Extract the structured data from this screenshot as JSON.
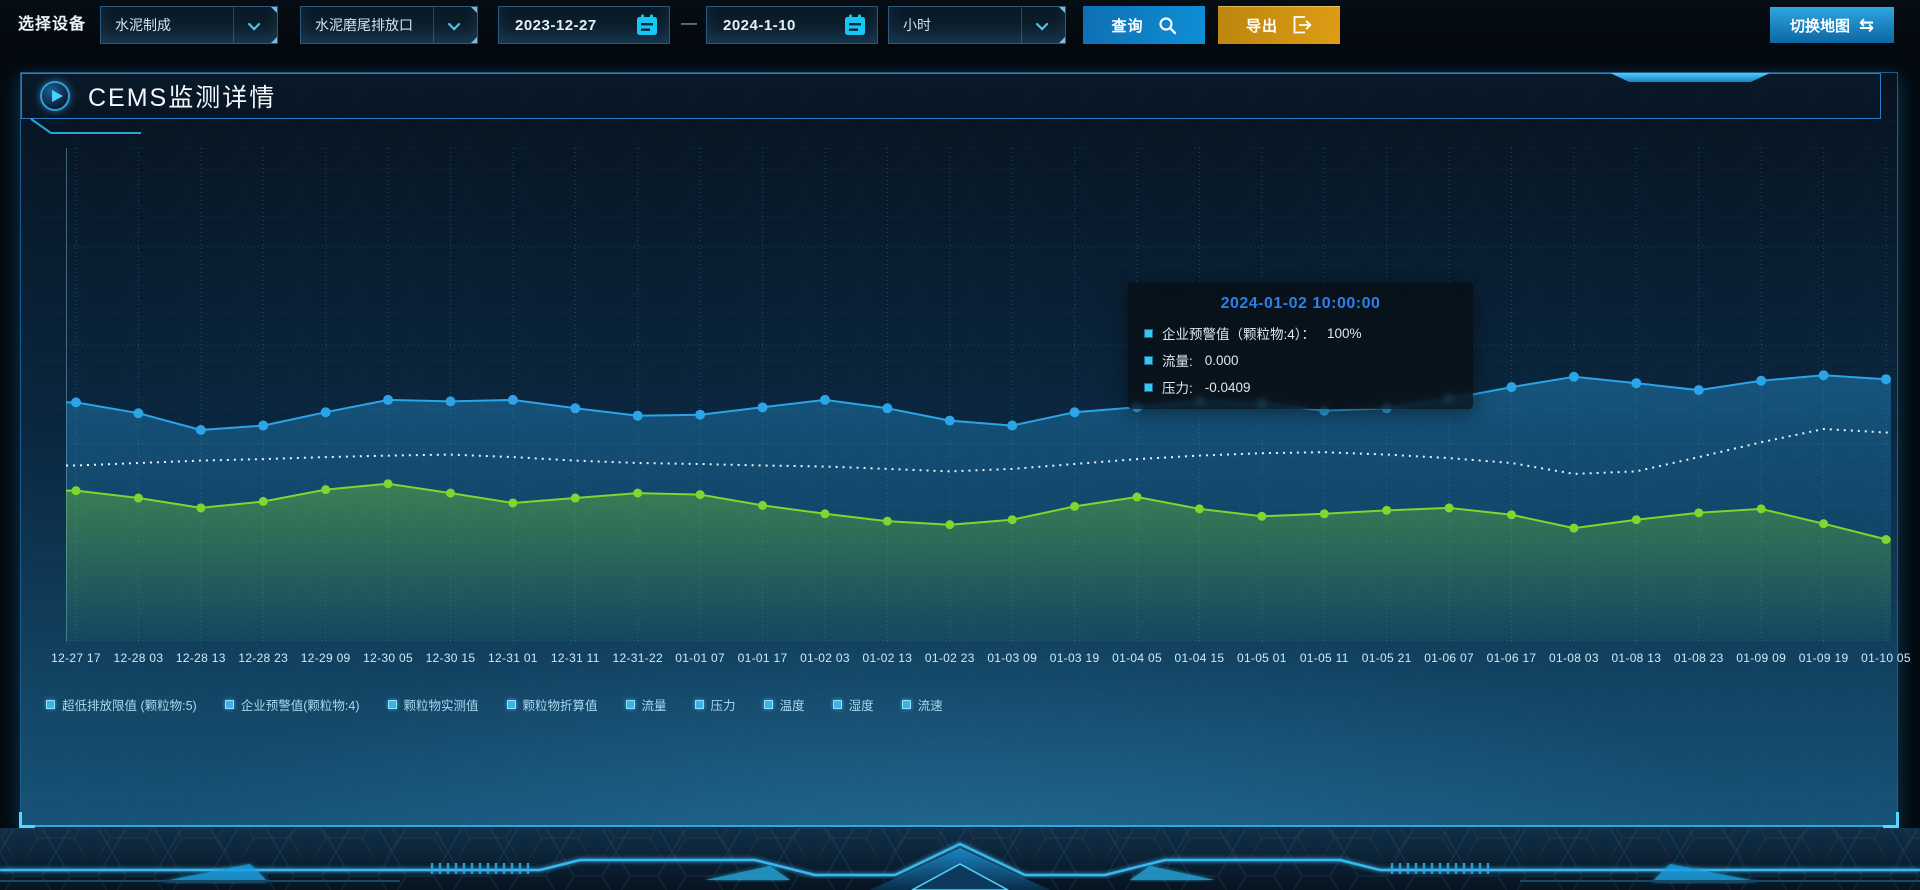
{
  "toolbar": {
    "device_label": "选择设备",
    "selects": [
      {
        "value": "水泥制成"
      },
      {
        "value": "水泥磨尾排放口"
      },
      {
        "value": "小时"
      }
    ],
    "date_start": "2023-12-27",
    "date_separator": "—",
    "date_end": "2024-1-10",
    "query_label": "查询",
    "export_label": "导出",
    "switch_map_label": "切换地图",
    "switch_map_icon": "⇆"
  },
  "panel": {
    "title": "CEMS监测详情"
  },
  "tooltip": {
    "title": "2024-01-02 10:00:00",
    "rows": [
      {
        "label": "企业预警值（颗粒物:4）：",
        "value": "100%"
      },
      {
        "label": "流量:",
        "value": "0.000"
      },
      {
        "label": "压力:",
        "value": "-0.0409"
      }
    ]
  },
  "legend": {
    "items": [
      "超低排放限值 (颗粒物:5)",
      "企业预警值(颗粒物:4)",
      "颗粒物实测值",
      "颗粒物折算值",
      "流量",
      "压力",
      "温度",
      "湿度",
      "流速"
    ]
  },
  "chart_data": {
    "type": "line",
    "title": "",
    "xlabel": "",
    "ylabel": "",
    "grid": "dotted",
    "legend_position": "bottom",
    "y_axis_labels_visible": false,
    "values_unit": "percent-of-plot-height (y axis unlabeled in screenshot)",
    "ylim": [
      0,
      100
    ],
    "x_labels": [
      "12-27 17",
      "12-28 03",
      "12-28 13",
      "12-28 23",
      "12-29 09",
      "12-30 05",
      "12-30 15",
      "12-31 01",
      "12-31 11",
      "12-31-22",
      "01-01 07",
      "01-01 17",
      "01-02 03",
      "01-02 13",
      "01-02 23",
      "01-03 09",
      "01-03 19",
      "01-04 05",
      "01-04 15",
      "01-05 01",
      "01-05 11",
      "01-05 21",
      "01-06 07",
      "01-06 17",
      "01-08 03",
      "01-08 13",
      "01-08 23",
      "01-09 09",
      "01-09 19",
      "01-10 05"
    ],
    "series": [
      {
        "name": "blue-line-with-markers",
        "color": "#2ba4e8",
        "marker": "circle",
        "marker_r": 5,
        "style": "solid",
        "area": true,
        "values": [
          48.4,
          46.2,
          42.8,
          43.7,
          46.4,
          48.9,
          48.6,
          48.9,
          47.2,
          45.7,
          45.9,
          47.4,
          48.9,
          47.2,
          44.7,
          43.7,
          46.4,
          47.4,
          48.6,
          48.2,
          46.7,
          47.2,
          49.1,
          51.5,
          53.6,
          52.3,
          50.9,
          52.8,
          53.9,
          53.1
        ]
      },
      {
        "name": "white-dashed-line",
        "color": "#e8f3f7",
        "marker": "none",
        "marker_r": 0,
        "style": "dashed",
        "area": false,
        "values": [
          35.6,
          36.1,
          36.6,
          36.9,
          37.3,
          37.6,
          37.8,
          37.3,
          36.6,
          36.1,
          35.9,
          35.6,
          35.4,
          34.9,
          34.4,
          34.9,
          35.9,
          36.9,
          37.6,
          38.1,
          38.3,
          37.8,
          37.1,
          36.1,
          33.9,
          34.4,
          37.3,
          40.3,
          43.0,
          42.3
        ]
      },
      {
        "name": "green-line-with-markers",
        "color": "#7ed62e",
        "marker": "circle",
        "marker_r": 4.5,
        "style": "solid",
        "area": true,
        "values": [
          30.5,
          29.0,
          27.0,
          28.3,
          30.7,
          31.9,
          30.0,
          28.0,
          29.0,
          30.0,
          29.7,
          27.5,
          25.8,
          24.3,
          23.6,
          24.6,
          27.3,
          29.2,
          26.8,
          25.3,
          25.8,
          26.5,
          27.0,
          25.6,
          22.9,
          24.6,
          26.0,
          26.8,
          23.8,
          20.6
        ]
      }
    ]
  }
}
